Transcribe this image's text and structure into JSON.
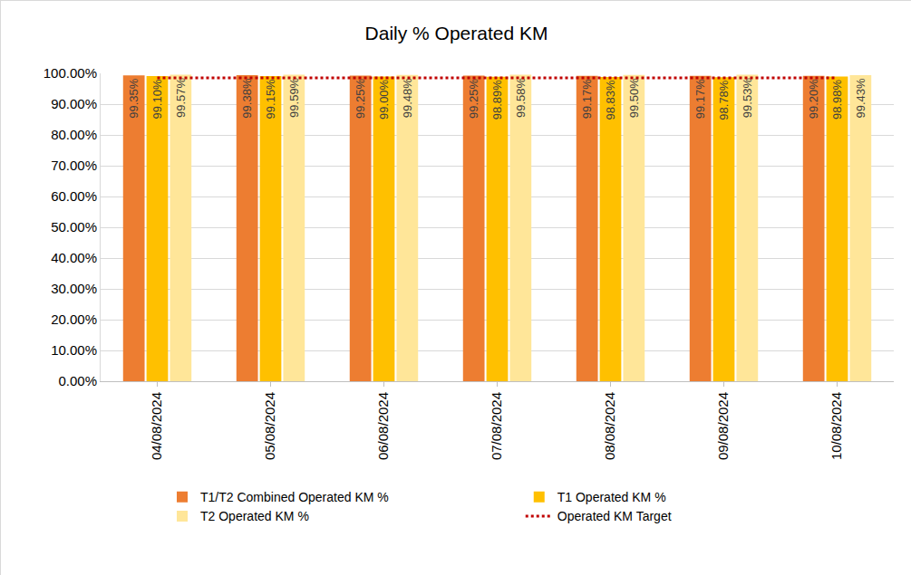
{
  "chart_data": {
    "type": "bar",
    "title": "Daily % Operated KM",
    "categories": [
      "04/08/2024",
      "05/08/2024",
      "06/08/2024",
      "07/08/2024",
      "08/08/2024",
      "09/08/2024",
      "10/08/2024"
    ],
    "series": [
      {
        "name": "T1/T2 Combined Operated KM %",
        "type": "bar",
        "color": "#ED7D31",
        "values": [
          99.35,
          99.38,
          99.25,
          99.25,
          99.17,
          99.17,
          99.2
        ],
        "value_labels": [
          "99.35%",
          "99.38%",
          "99.25%",
          "99.25%",
          "99.17%",
          "99.17%",
          "99.20%"
        ]
      },
      {
        "name": "T1 Operated KM %",
        "type": "bar",
        "color": "#FFC000",
        "values": [
          99.1,
          99.15,
          99.0,
          98.89,
          98.83,
          98.78,
          98.98
        ],
        "value_labels": [
          "99.10%",
          "99.15%",
          "99.00%",
          "98.89%",
          "98.83%",
          "98.78%",
          "98.98%"
        ]
      },
      {
        "name": "T2 Operated KM %",
        "type": "bar",
        "color": "#FFE699",
        "values": [
          99.57,
          99.59,
          99.48,
          99.58,
          99.5,
          99.53,
          99.43
        ],
        "value_labels": [
          "99.57%",
          "99.59%",
          "99.48%",
          "99.58%",
          "99.50%",
          "99.53%",
          "99.43%"
        ]
      },
      {
        "name": "Operated KM Target",
        "type": "line",
        "color": "#C00000",
        "line_style": "dotted",
        "values": [
          98.5,
          98.5,
          98.5,
          98.5,
          98.5,
          98.5,
          98.5
        ]
      }
    ],
    "ylim": [
      0,
      100
    ],
    "yticks": [
      {
        "value": 0,
        "label": "0.00%"
      },
      {
        "value": 10,
        "label": "10.00%"
      },
      {
        "value": 20,
        "label": "20.00%"
      },
      {
        "value": 30,
        "label": "30.00%"
      },
      {
        "value": 40,
        "label": "40.00%"
      },
      {
        "value": 50,
        "label": "50.00%"
      },
      {
        "value": 60,
        "label": "60.00%"
      },
      {
        "value": 70,
        "label": "70.00%"
      },
      {
        "value": 80,
        "label": "80.00%"
      },
      {
        "value": 90,
        "label": "90.00%"
      },
      {
        "value": 100,
        "label": "100.00%"
      }
    ],
    "grid": true,
    "legend": "bottom",
    "data_labels": true
  }
}
